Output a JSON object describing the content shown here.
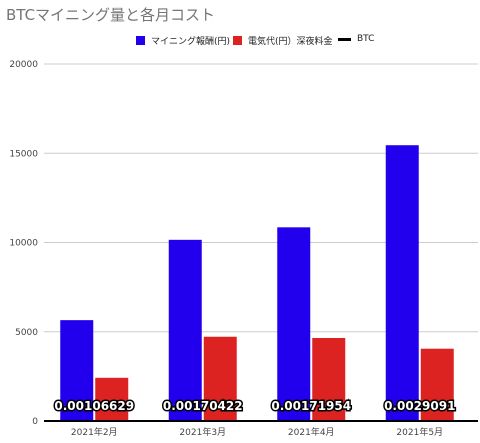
{
  "chart_data": {
    "type": "bar",
    "title": "BTCマイニング量と各月コスト",
    "categories": [
      "2021年2月",
      "2021年3月",
      "2021年4月",
      "2021年5月"
    ],
    "series": [
      {
        "name": "マイニング報酬(円)",
        "values": [
          5650,
          10150,
          10850,
          15450
        ],
        "color": "#2200ee"
      },
      {
        "name": "電気代(円）深夜料金",
        "values": [
          2420,
          4720,
          4650,
          4050
        ],
        "color": "#dd2222"
      },
      {
        "name": "BTC",
        "values": [
          "0.00106629",
          "0.00170422",
          "0.00171954",
          "0.0029091"
        ],
        "color": "#000000"
      }
    ],
    "y_ticks": [
      "0",
      "5000",
      "10000",
      "15000",
      "20000"
    ],
    "ylim": [
      0,
      20000
    ],
    "grid": true,
    "legend": "top-center"
  }
}
